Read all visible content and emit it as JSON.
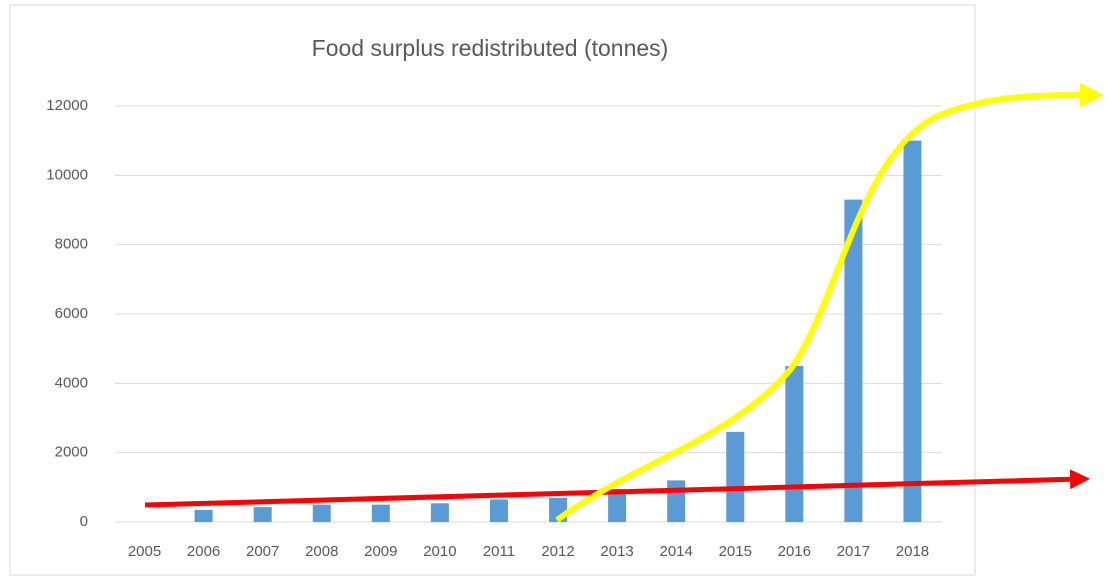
{
  "chart_data": {
    "type": "bar",
    "title": "Food surplus redistributed (tonnes)",
    "categories": [
      "2005",
      "2006",
      "2007",
      "2008",
      "2009",
      "2010",
      "2011",
      "2012",
      "2013",
      "2014",
      "2015",
      "2016",
      "2017",
      "2018"
    ],
    "values": [
      0,
      350,
      430,
      500,
      500,
      540,
      650,
      700,
      950,
      1200,
      2600,
      4500,
      9300,
      11000
    ],
    "color": "#5b9bd5",
    "ylim": [
      0,
      12000
    ],
    "yticks": [
      0,
      2000,
      4000,
      6000,
      8000,
      10000,
      12000
    ],
    "grid": true
  }
}
